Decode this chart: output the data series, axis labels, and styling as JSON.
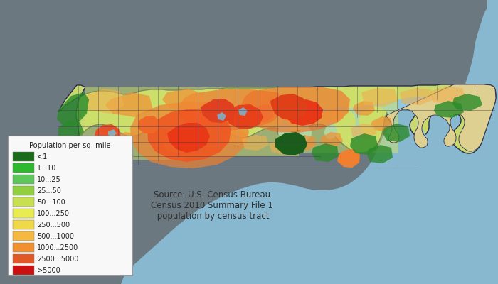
{
  "background_color": "#6b7880",
  "water_color": "#88b8d0",
  "legend_title": "Population per sq. mile",
  "legend_labels": [
    "<1",
    "1...10",
    "10...25",
    "25...50",
    "50...100",
    "100...250",
    "250...500",
    "500...1000",
    "1000...2500",
    "2500...5000",
    ">5000"
  ],
  "legend_colors": [
    "#1a6b1a",
    "#2db82d",
    "#5cc85c",
    "#90d040",
    "#c8e050",
    "#e8ec50",
    "#f0d848",
    "#f5b840",
    "#f09030",
    "#e05828",
    "#cc1010"
  ],
  "source_text": "Source: U.S. Census Bureau\nCensus 2010 Summary File 1\n population by census tract",
  "legend_box_color": "#f8f8f8",
  "legend_text_color": "#222222",
  "county_line_color": "#3a3a5a",
  "state_border_color": "#2a2a4a",
  "base_color": "#c8dc70",
  "light_green": "#b0d060",
  "medium_green": "#90c050",
  "dark_green_forest": "#1a6b1a",
  "light_yellow": "#e8f060",
  "pale_yellow": "#f0f080",
  "tan_coastal": "#e8d890",
  "outer_banks_color": "#ddd090",
  "sound_water": "#90c8e0"
}
